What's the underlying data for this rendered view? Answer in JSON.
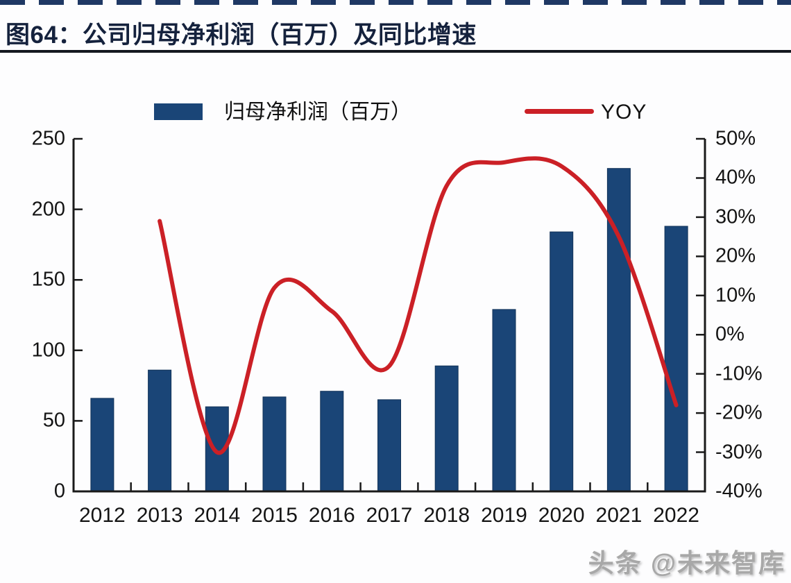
{
  "title": "图64：公司归母净利润（百万）及同比增速",
  "watermark": "头条 @未来智库",
  "colors": {
    "bar": "#1a4577",
    "bar_border": "#123258",
    "line": "#cb2026",
    "axis": "#1a1a1a",
    "title": "#15223d",
    "divider": "#14181f",
    "top_dashes": "#1f3864",
    "watermark": "#a8a8a8"
  },
  "chart_data": {
    "type": "combo-bar-line",
    "title": "公司归母净利润（百万）及同比增速",
    "categories": [
      "2012",
      "2013",
      "2014",
      "2015",
      "2016",
      "2017",
      "2018",
      "2019",
      "2020",
      "2021",
      "2022"
    ],
    "series": [
      {
        "name": "归母净利润（百万）",
        "type": "bar",
        "y_axis": "left",
        "values": [
          66,
          86,
          60,
          67,
          71,
          65,
          89,
          129,
          184,
          229,
          188
        ]
      },
      {
        "name": "YOY",
        "type": "line",
        "y_axis": "right",
        "unit": "%",
        "values": [
          null,
          29,
          -30,
          12,
          6,
          -8,
          38,
          44,
          43,
          25,
          -18
        ]
      }
    ],
    "left_axis": {
      "min": 0,
      "max": 250,
      "step": 50,
      "tick_values": [
        0,
        50,
        100,
        150,
        200,
        250
      ],
      "tick_labels": [
        "0",
        "50",
        "100",
        "150",
        "200",
        "250"
      ]
    },
    "right_axis": {
      "min": -40,
      "max": 50,
      "step": 10,
      "tick_values": [
        -40,
        -30,
        -20,
        -10,
        0,
        10,
        20,
        30,
        40,
        50
      ],
      "tick_labels": [
        "-40%",
        "-30%",
        "-20%",
        "-10%",
        "0%",
        "10%",
        "20%",
        "30%",
        "40%",
        "50%"
      ]
    },
    "legend": [
      "归母净利润（百万）",
      "YOY"
    ],
    "legend_position": "top",
    "grid": false,
    "tick_style": "inside"
  }
}
